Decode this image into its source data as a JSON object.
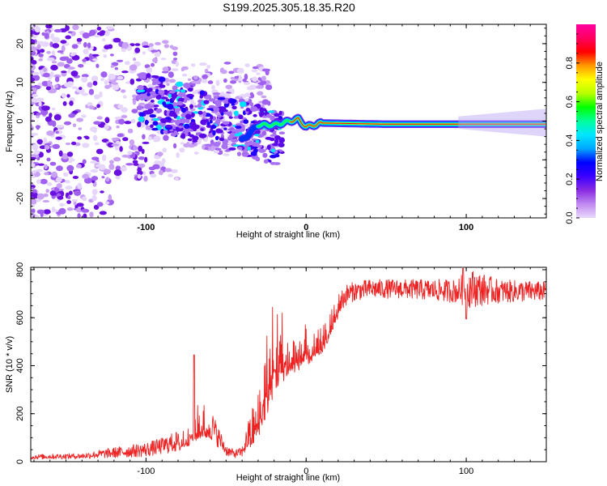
{
  "title": "S199.2025.305.18.35.R20",
  "colors": {
    "snr_line": "#ee2222",
    "axis": "#000000",
    "colorbar_stops": [
      "#e9d7fb",
      "#c08af0",
      "#8a2be2",
      "#3a00ff",
      "#0000ff",
      "#00a6ff",
      "#00e5ff",
      "#00ff9c",
      "#00ff00",
      "#b8ff00",
      "#ffff00",
      "#ff9a00",
      "#ff0000",
      "#ff0060",
      "#ff00a0"
    ]
  },
  "chart_data": [
    {
      "type": "heatmap",
      "title": "S199.2025.305.18.35.R20",
      "xlabel": "Height of straight line (km)",
      "ylabel": "Frequency (Hz)",
      "xlim": [
        -172,
        150
      ],
      "ylim": [
        -25,
        25
      ],
      "xticks": [
        -100,
        0,
        100
      ],
      "yticks": [
        -20,
        -10,
        0,
        10,
        20
      ],
      "colorbar": {
        "label": "Normalized spectral amplitude",
        "range": [
          0.0,
          1.0
        ],
        "ticks": [
          "0.0",
          "0.2",
          "0.4",
          "0.6",
          "0.8"
        ]
      },
      "ridge": {
        "description": "spectral line near 0 Hz",
        "x": [
          -40,
          -30,
          -20,
          -10,
          -5,
          0,
          5,
          10,
          50,
          100,
          150
        ],
        "y": [
          -5,
          -1,
          -1,
          0,
          0.5,
          -1.5,
          -1,
          -0.5,
          -0.8,
          -0.8,
          -0.8
        ]
      }
    },
    {
      "type": "line",
      "xlabel": "Height of straight line (km)",
      "ylabel": "SNR (10 * v/v)",
      "xlim": [
        -172,
        150
      ],
      "ylim": [
        0,
        810
      ],
      "xticks": [
        -100,
        0,
        100
      ],
      "yticks": [
        0,
        200,
        400,
        600,
        800
      ],
      "series": [
        {
          "name": "SNR",
          "envelope": {
            "x": [
              -172,
              -140,
              -120,
              -100,
              -90,
              -80,
              -75,
              -70,
              -65,
              -60,
              -55,
              -50,
              -45,
              -40,
              -35,
              -30,
              -25,
              -20,
              -15,
              -10,
              -5,
              0,
              5,
              10,
              15,
              20,
              25,
              30,
              40,
              60,
              80,
              95,
              100,
              120,
              150
            ],
            "low": [
              10,
              12,
              15,
              20,
              30,
              40,
              60,
              80,
              100,
              90,
              60,
              25,
              15,
              20,
              50,
              100,
              180,
              280,
              330,
              360,
              380,
              400,
              420,
              450,
              520,
              600,
              650,
              670,
              680,
              680,
              670,
              660,
              640,
              660,
              670
            ],
            "high": [
              30,
              35,
              60,
              80,
              100,
              130,
              180,
              230,
              250,
              230,
              150,
              70,
              50,
              60,
              200,
              350,
              550,
              700,
              650,
              530,
              580,
              570,
              540,
              560,
              620,
              700,
              740,
              750,
              760,
              760,
              760,
              760,
              810,
              760,
              750
            ]
          }
        }
      ]
    }
  ]
}
